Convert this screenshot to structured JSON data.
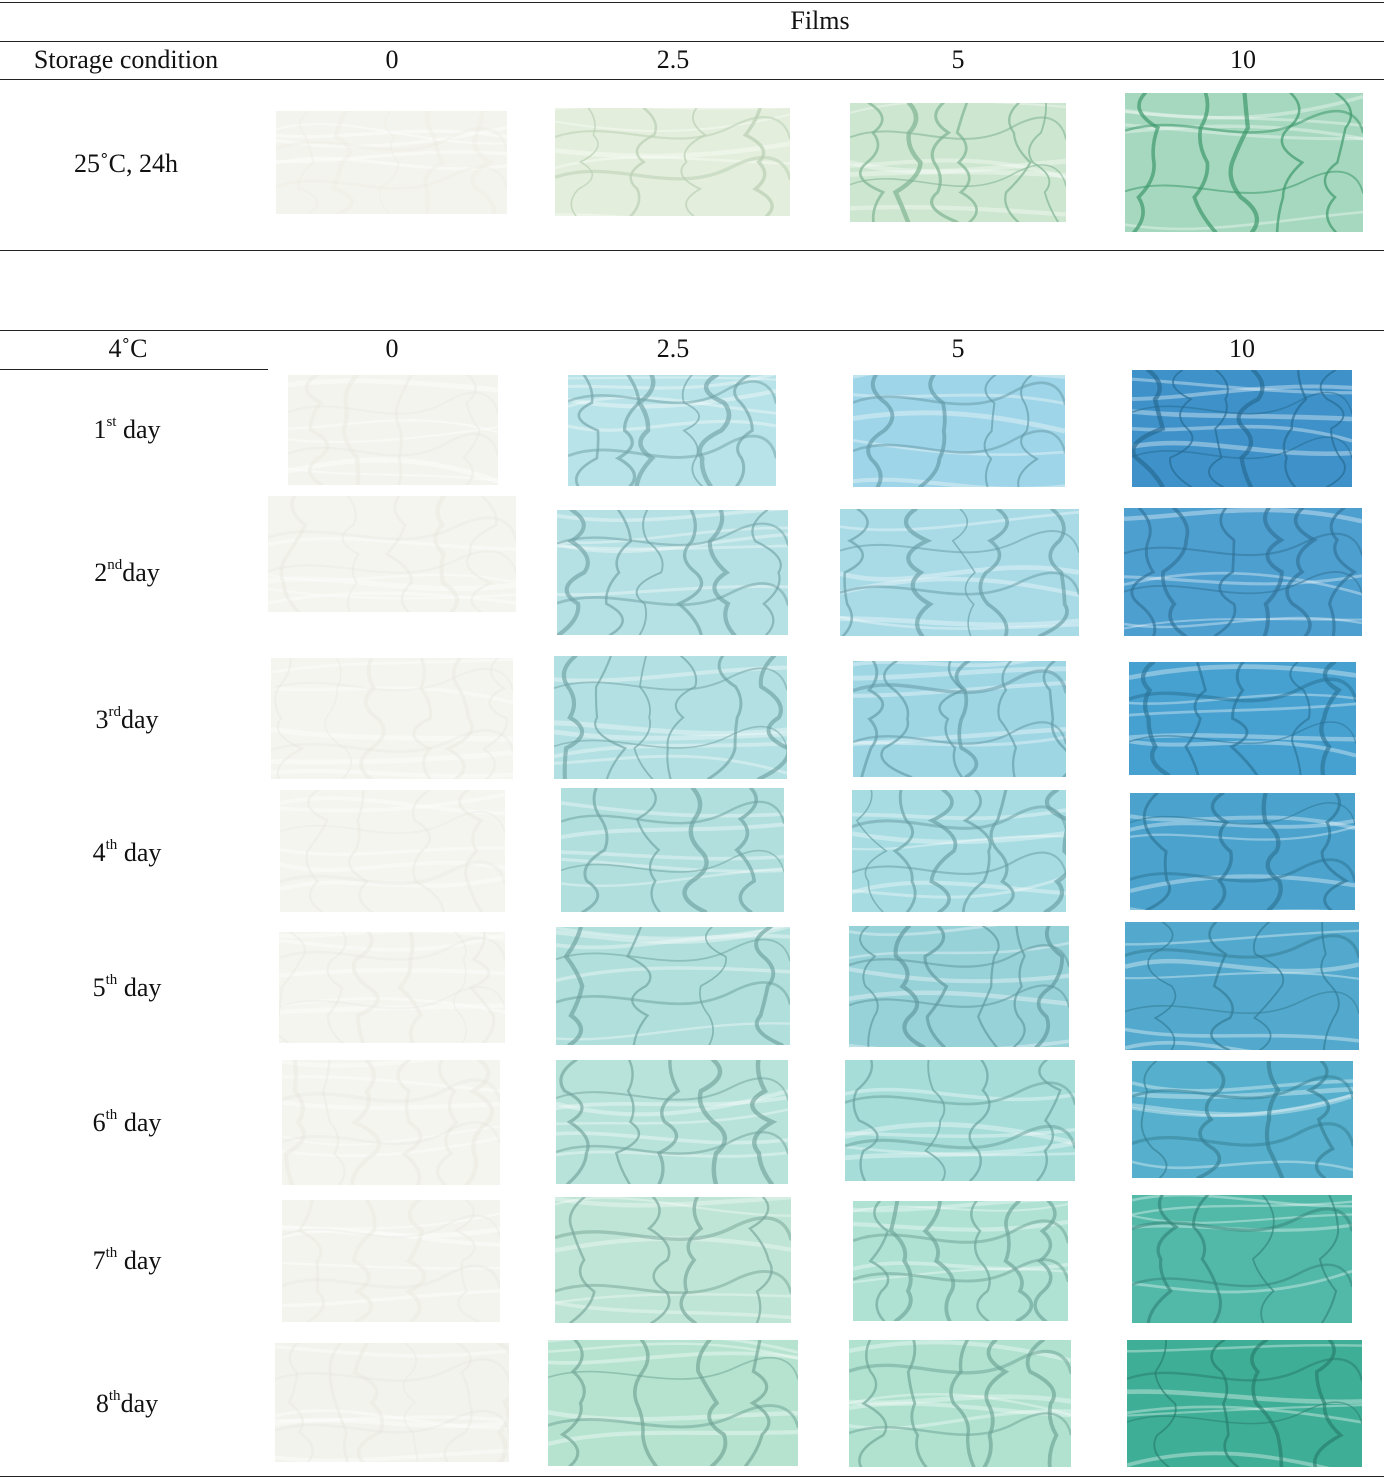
{
  "header": {
    "group_label": "Films",
    "storage_condition_label": "Storage condition",
    "concentrations": [
      "0",
      "2.5",
      "5",
      "10"
    ]
  },
  "section_room": {
    "condition": "25˚C, 24h"
  },
  "section_cold": {
    "condition": "4˚C",
    "concentrations": [
      "0",
      "2.5",
      "5",
      "10"
    ],
    "days": [
      {
        "num": "1",
        "sup": "st",
        "word": " day"
      },
      {
        "num": "2",
        "sup": "nd",
        "word": "day"
      },
      {
        "num": "3",
        "sup": "rd",
        "word": "day"
      },
      {
        "num": "4",
        "sup": "th",
        "word": " day"
      },
      {
        "num": "5",
        "sup": "th",
        "word": " day"
      },
      {
        "num": "6",
        "sup": "th",
        "word": " day"
      },
      {
        "num": "7",
        "sup": "th",
        "word": " day"
      },
      {
        "num": "8",
        "sup": "th",
        "word": "day"
      }
    ]
  },
  "colors": {
    "rule": "#222222",
    "room_0": "#f4f4ee",
    "room_2_5": "#e3eedc",
    "room_5": "#cde6d0",
    "room_10": "#a6d8bf",
    "cold_0": "#f4f4ef"
  }
}
